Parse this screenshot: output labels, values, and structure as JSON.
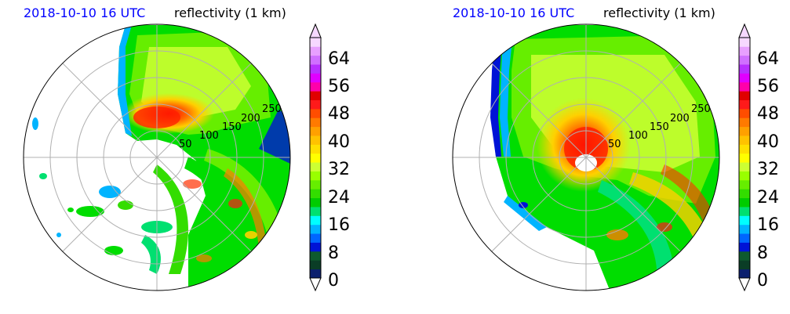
{
  "charts": [
    {
      "id": "left",
      "title_date": "2018-10-10 16 UTC",
      "title_var": "reflectivity (1 km)",
      "ring_labels": [
        "50",
        "100",
        "150",
        "200",
        "250"
      ],
      "colorbar": {
        "ticks": [
          "0",
          "8",
          "16",
          "24",
          "32",
          "40",
          "48",
          "56",
          "64"
        ]
      }
    },
    {
      "id": "right",
      "title_date": "2018-10-10 16 UTC",
      "title_var": "reflectivity (1 km)",
      "ring_labels": [
        "50",
        "100",
        "150",
        "200",
        "250"
      ],
      "colorbar": {
        "ticks": [
          "0",
          "8",
          "16",
          "24",
          "32",
          "40",
          "48",
          "56",
          "64"
        ]
      }
    }
  ],
  "chart_data": [
    {
      "type": "heatmap",
      "title": "2018-10-10 16 UTC reflectivity (1 km)",
      "projection": "polar",
      "radial_rings": [
        50,
        100,
        150,
        200,
        250
      ],
      "colorbar": {
        "min": 0,
        "max": 68,
        "ticks": [
          0,
          8,
          16,
          24,
          32,
          40,
          48,
          56,
          64
        ],
        "extend": "both"
      },
      "colors": [
        "#0b1f6e",
        "#0a3d26",
        "#0e5a2e",
        "#0013d6",
        "#0066ff",
        "#00b4ff",
        "#00ffff",
        "#00e070",
        "#00cc00",
        "#33dd00",
        "#66ee00",
        "#99ff00",
        "#ccff33",
        "#ffff00",
        "#ffe000",
        "#ffc200",
        "#ffa000",
        "#ff7a00",
        "#ff4d00",
        "#ff1a1a",
        "#e00000",
        "#ff00aa",
        "#e000ff",
        "#b830ff",
        "#d070ff",
        "#e8a0ff",
        "#f6d8ff"
      ],
      "cyclone_center": "off-center toward top, ~50 km ring; eye partially open",
      "grid": true
    },
    {
      "type": "heatmap",
      "title": "2018-10-10 16 UTC reflectivity (1 km)",
      "projection": "polar",
      "radial_rings": [
        50,
        100,
        150,
        200,
        250
      ],
      "colorbar": {
        "min": 0,
        "max": 68,
        "ticks": [
          0,
          8,
          16,
          24,
          32,
          40,
          48,
          56,
          64
        ],
        "extend": "both"
      },
      "colors": [
        "#0b1f6e",
        "#0a3d26",
        "#0e5a2e",
        "#0013d6",
        "#0066ff",
        "#00b4ff",
        "#00ffff",
        "#00e070",
        "#00cc00",
        "#33dd00",
        "#66ee00",
        "#99ff00",
        "#ccff33",
        "#ffff00",
        "#ffe000",
        "#ffc200",
        "#ffa000",
        "#ff7a00",
        "#ff4d00",
        "#ff1a1a",
        "#e00000",
        "#ff00aa",
        "#e000ff",
        "#b830ff",
        "#d070ff",
        "#e8a0ff",
        "#f6d8ff"
      ],
      "cyclone_center": "near center with well-defined eye",
      "grid": true
    }
  ]
}
